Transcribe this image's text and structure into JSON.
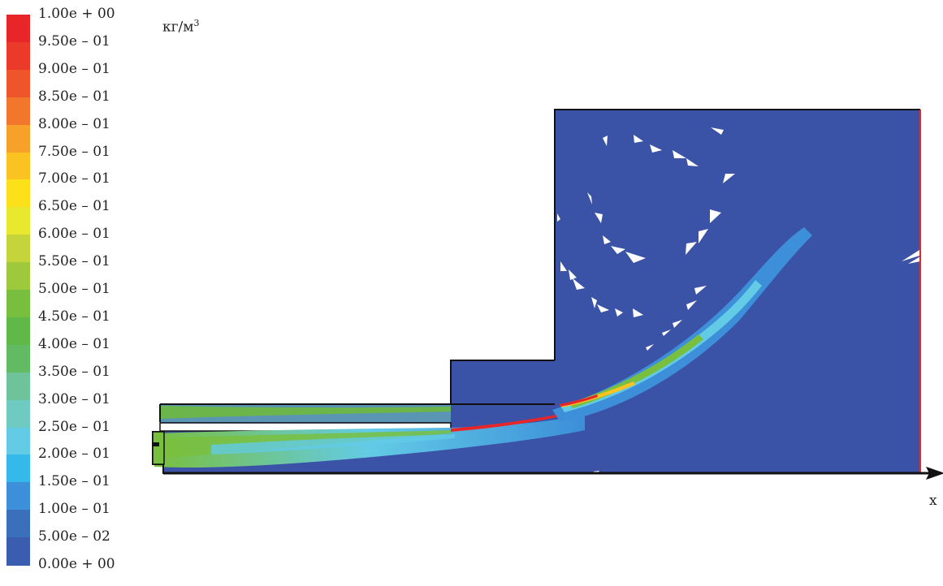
{
  "legend": {
    "unit_main": "кг/м",
    "unit_sup": "3",
    "levels": [
      {
        "label": "1.00e + 00",
        "color": "#e8262a"
      },
      {
        "label": "9.50e – 01",
        "color": "#ec3a2a"
      },
      {
        "label": "9.00e – 01",
        "color": "#ef552a"
      },
      {
        "label": "8.50e – 01",
        "color": "#f2772d"
      },
      {
        "label": "8.00e – 01",
        "color": "#f7a12b"
      },
      {
        "label": "7.50e – 01",
        "color": "#fbc321"
      },
      {
        "label": "7.00e – 01",
        "color": "#fbe01a"
      },
      {
        "label": "6.50e – 01",
        "color": "#e8e82e"
      },
      {
        "label": "6.00e – 01",
        "color": "#c4d43a"
      },
      {
        "label": "5.50e – 01",
        "color": "#9ec93c"
      },
      {
        "label": "5.00e – 01",
        "color": "#79bf3f"
      },
      {
        "label": "4.50e – 01",
        "color": "#5fb848"
      },
      {
        "label": "4.00e – 01",
        "color": "#62bb62"
      },
      {
        "label": "3.50e – 01",
        "color": "#6fc39a"
      },
      {
        "label": "3.00e – 01",
        "color": "#6fcbc2"
      },
      {
        "label": "2.50e – 01",
        "color": "#63cbe6"
      },
      {
        "label": "2.00e – 01",
        "color": "#35b8ea"
      },
      {
        "label": "1.50e – 01",
        "color": "#3c8fd8"
      },
      {
        "label": "1.00e – 01",
        "color": "#3a6fbc"
      },
      {
        "label": "5.00e – 02",
        "color": "#3b5db0"
      },
      {
        "label": "0.00e + 00",
        "color": "#3a52a6"
      }
    ]
  },
  "axis": {
    "x_label": "x"
  },
  "colors": {
    "background_field": "#3b53a6",
    "outline": "#111111",
    "outlet": "#e8262a",
    "jet_low": "#35b8ea",
    "jet_mid": "#79bf3f",
    "jet_high": "#e8262a"
  }
}
